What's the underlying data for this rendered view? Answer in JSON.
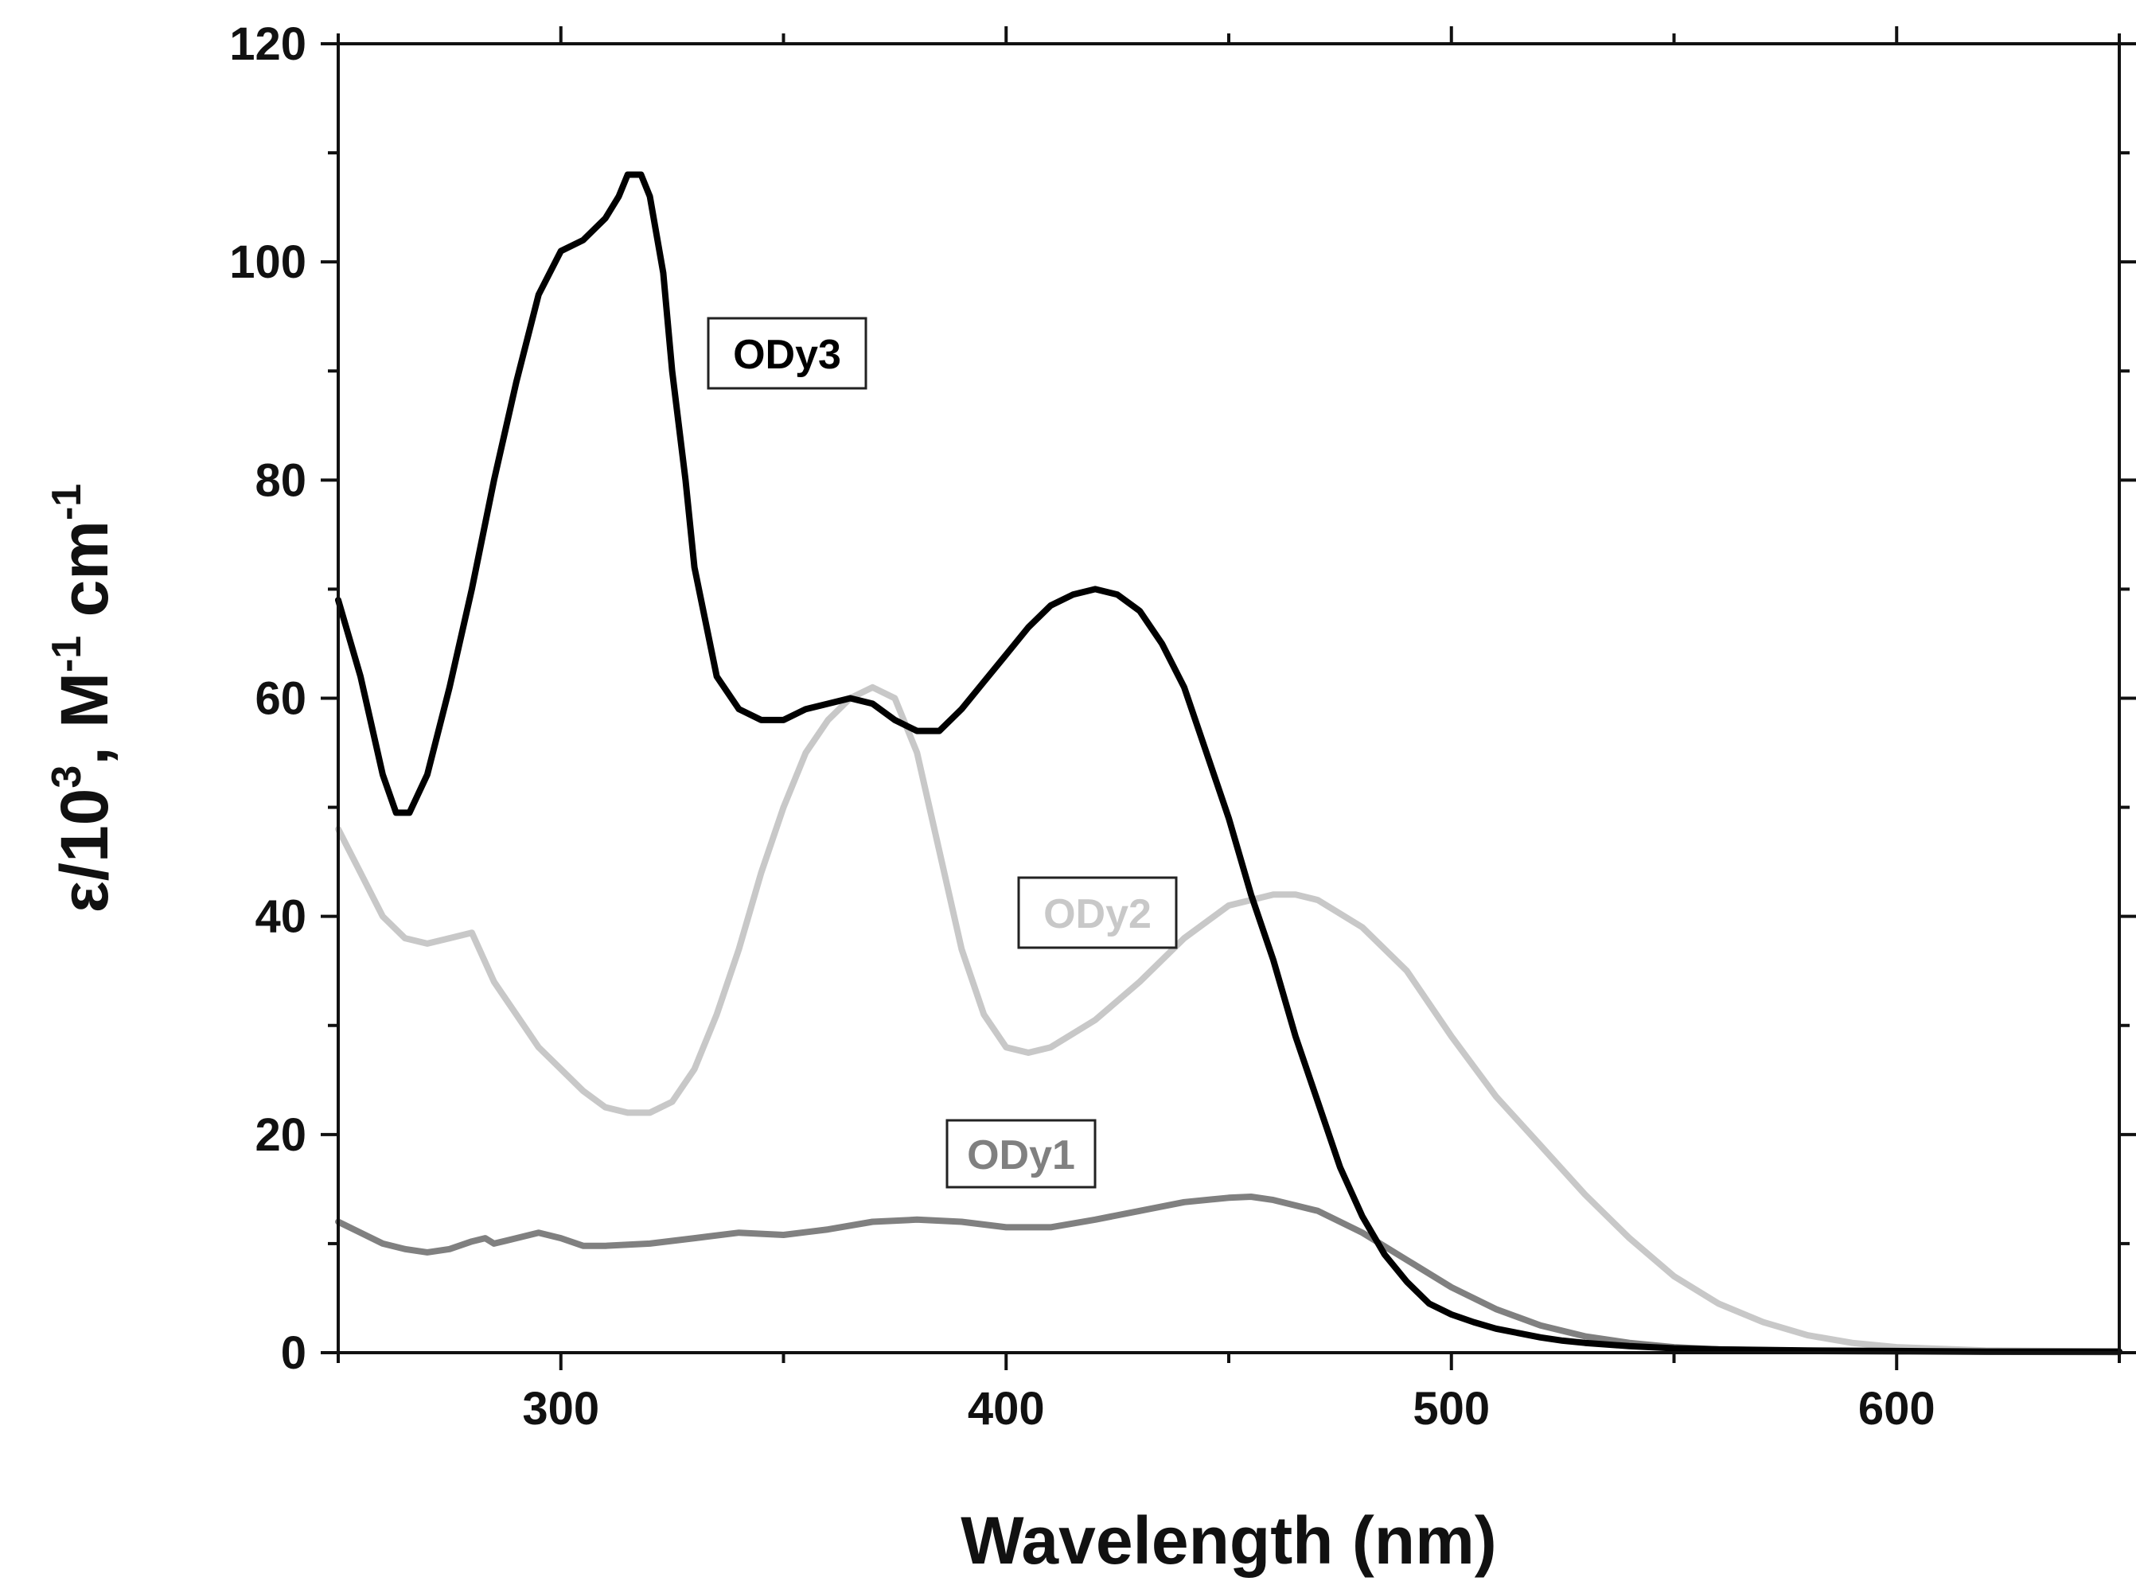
{
  "chart_data": {
    "type": "line",
    "title": "",
    "xlabel": "Wavelength (nm)",
    "ylabel": {
      "prefix": "ε/10",
      "sup1": "3",
      "mid": ", M",
      "sup2": "-1",
      "mid2": " cm",
      "sup3": "-1"
    },
    "xlim": [
      250,
      650
    ],
    "ylim": [
      0,
      120
    ],
    "x_ticks": [
      300,
      400,
      500,
      600
    ],
    "y_ticks": [
      0,
      20,
      40,
      60,
      80,
      100,
      120
    ],
    "grid": false,
    "series": [
      {
        "name": "ODy3",
        "color": "#000000",
        "x": [
          250,
          255,
          260,
          263,
          266,
          270,
          275,
          280,
          285,
          290,
          295,
          300,
          305,
          310,
          313,
          315,
          318,
          320,
          323,
          325,
          328,
          330,
          335,
          340,
          345,
          350,
          355,
          360,
          365,
          370,
          375,
          380,
          385,
          390,
          395,
          400,
          405,
          410,
          415,
          420,
          425,
          430,
          435,
          440,
          445,
          450,
          455,
          460,
          465,
          470,
          475,
          480,
          485,
          490,
          495,
          500,
          505,
          510,
          515,
          520,
          525,
          530,
          540,
          550,
          560,
          580,
          600,
          620,
          650
        ],
        "values": [
          69,
          62,
          53,
          49.5,
          49.5,
          53,
          61,
          70,
          80,
          89,
          97,
          101,
          102,
          104,
          106,
          108,
          108,
          106,
          99,
          90,
          80,
          72,
          62,
          59,
          58,
          58,
          59,
          59.5,
          60,
          59.5,
          58,
          57,
          57,
          59,
          61.5,
          64,
          66.5,
          68.5,
          69.5,
          70,
          69.5,
          68,
          65,
          61,
          55,
          49,
          42,
          36,
          29,
          23,
          17,
          12.5,
          9,
          6.5,
          4.5,
          3.5,
          2.8,
          2.2,
          1.8,
          1.4,
          1.1,
          0.9,
          0.6,
          0.4,
          0.3,
          0.2,
          0.15,
          0.1,
          0.1
        ]
      },
      {
        "name": "ODy2",
        "color": "#c8c8c8",
        "x": [
          250,
          255,
          260,
          265,
          270,
          275,
          280,
          285,
          290,
          295,
          300,
          305,
          310,
          315,
          320,
          325,
          330,
          335,
          340,
          345,
          350,
          355,
          360,
          365,
          370,
          375,
          380,
          385,
          390,
          395,
          400,
          405,
          410,
          420,
          430,
          440,
          450,
          460,
          465,
          470,
          480,
          490,
          500,
          510,
          520,
          530,
          540,
          550,
          560,
          570,
          580,
          590,
          600,
          620,
          650
        ],
        "values": [
          48,
          44,
          40,
          38,
          37.5,
          38,
          38.5,
          34,
          31,
          28,
          26,
          24,
          22.5,
          22,
          22,
          23,
          26,
          31,
          37,
          44,
          50,
          55,
          58,
          60,
          61,
          60,
          55,
          46,
          37,
          31,
          28,
          27.5,
          28,
          30.5,
          34,
          38,
          41,
          42,
          42,
          41.5,
          39,
          35,
          29,
          23.5,
          19,
          14.5,
          10.5,
          7,
          4.5,
          2.8,
          1.6,
          0.9,
          0.5,
          0.2,
          0.1
        ]
      },
      {
        "name": "ODy1",
        "color": "#808080",
        "x": [
          250,
          255,
          260,
          265,
          270,
          275,
          280,
          283,
          285,
          290,
          295,
          300,
          305,
          310,
          320,
          330,
          340,
          350,
          360,
          370,
          380,
          390,
          400,
          410,
          420,
          430,
          440,
          450,
          455,
          460,
          470,
          480,
          490,
          500,
          510,
          520,
          530,
          540,
          550,
          560,
          580,
          600,
          650
        ],
        "values": [
          12,
          11,
          10,
          9.5,
          9.2,
          9.5,
          10.2,
          10.5,
          10,
          10.5,
          11,
          10.5,
          9.8,
          9.8,
          10,
          10.5,
          11,
          10.8,
          11.3,
          12,
          12.2,
          12,
          11.5,
          11.5,
          12.2,
          13,
          13.8,
          14.2,
          14.3,
          14,
          13,
          11,
          8.5,
          6,
          4,
          2.5,
          1.5,
          0.9,
          0.5,
          0.3,
          0.15,
          0.1,
          0.05
        ]
      }
    ],
    "legend_labels": [
      {
        "text": "ODy3",
        "color": "#000000"
      },
      {
        "text": "ODy2",
        "color": "#c8c8c8"
      },
      {
        "text": "ODy1",
        "color": "#808080"
      }
    ]
  }
}
